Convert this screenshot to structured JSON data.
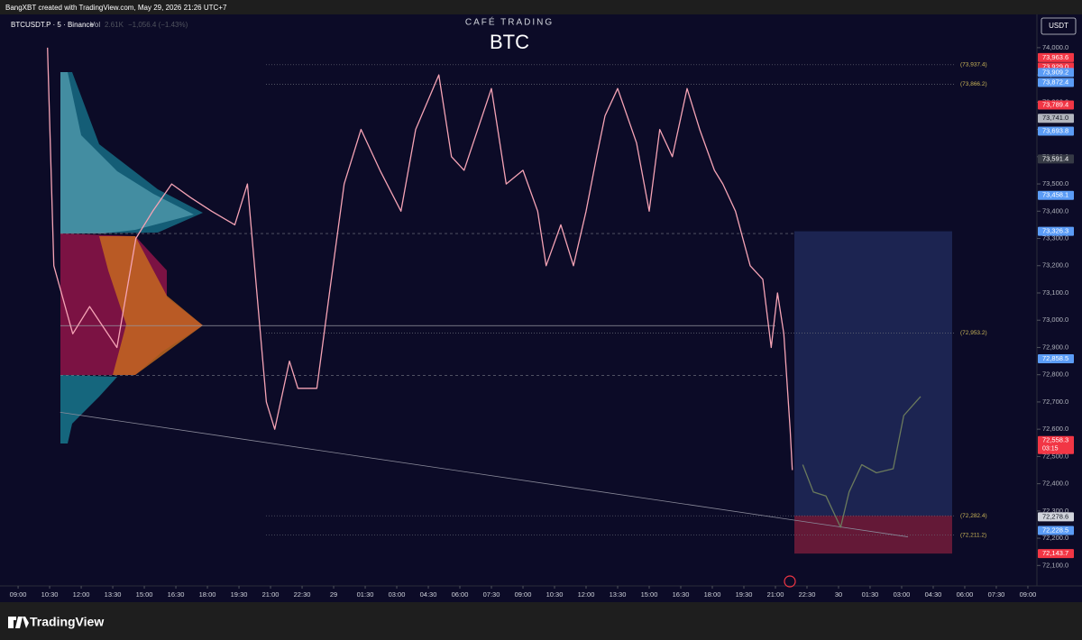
{
  "header": {
    "credit": "BangXBT created with TradingView.com, May 29, 2026 21:26 UTC+7",
    "symbol": "BTCUSDT.P · 5 · Binance",
    "vol_label": "Vol",
    "vol_value": "2.61K",
    "change": "−1,056.4 (−1.43%)",
    "brand": "CAFÉ TRADING",
    "currency": "USDT"
  },
  "footer": {
    "logo_text": "TradingView"
  },
  "chart_data": {
    "type": "line",
    "title": "BTC",
    "xlim": [
      -0.86,
      48.43
    ],
    "ylim": [
      72025,
      74122
    ],
    "xticks": [
      {
        "value": 0,
        "label": "09:00"
      },
      {
        "value": 1.5,
        "label": "10:30"
      },
      {
        "value": 3,
        "label": "12:00"
      },
      {
        "value": 4.5,
        "label": "13:30"
      },
      {
        "value": 6,
        "label": "15:00"
      },
      {
        "value": 7.5,
        "label": "16:30"
      },
      {
        "value": 9,
        "label": "18:00"
      },
      {
        "value": 10.5,
        "label": "19:30"
      },
      {
        "value": 12,
        "label": "21:00"
      },
      {
        "value": 13.5,
        "label": "22:30"
      },
      {
        "value": 15,
        "label": "29"
      },
      {
        "value": 16.5,
        "label": "01:30"
      },
      {
        "value": 18,
        "label": "03:00"
      },
      {
        "value": 19.5,
        "label": "04:30"
      },
      {
        "value": 21,
        "label": "06:00"
      },
      {
        "value": 22.5,
        "label": "07:30"
      },
      {
        "value": 24,
        "label": "09:00"
      },
      {
        "value": 25.5,
        "label": "10:30"
      },
      {
        "value": 27,
        "label": "12:00"
      },
      {
        "value": 28.5,
        "label": "13:30"
      },
      {
        "value": 30,
        "label": "15:00"
      },
      {
        "value": 31.5,
        "label": "16:30"
      },
      {
        "value": 33,
        "label": "18:00"
      },
      {
        "value": 34.5,
        "label": "19:30"
      },
      {
        "value": 36,
        "label": "21:00"
      },
      {
        "value": 37.5,
        "label": "22:30"
      },
      {
        "value": 39,
        "label": "30"
      },
      {
        "value": 40.5,
        "label": "01:30"
      },
      {
        "value": 42,
        "label": "03:00"
      },
      {
        "value": 43.5,
        "label": "04:30"
      },
      {
        "value": 45,
        "label": "06:00"
      },
      {
        "value": 46.5,
        "label": "07:30"
      },
      {
        "value": 48,
        "label": "09:00"
      }
    ],
    "yticks": [
      {
        "value": 72100,
        "label": "72,100.0"
      },
      {
        "value": 72200,
        "label": "72,200.0"
      },
      {
        "value": 72300,
        "label": "72,300.0"
      },
      {
        "value": 72400,
        "label": "72,400.0"
      },
      {
        "value": 72500,
        "label": "72,500.0"
      },
      {
        "value": 72600,
        "label": "72,600.0"
      },
      {
        "value": 72700,
        "label": "72,700.0"
      },
      {
        "value": 72800,
        "label": "72,800.0"
      },
      {
        "value": 72900,
        "label": "72,900.0"
      },
      {
        "value": 73000,
        "label": "73,000.0"
      },
      {
        "value": 73100,
        "label": "73,100.0"
      },
      {
        "value": 73200,
        "label": "73,200.0"
      },
      {
        "value": 73300,
        "label": "73,300.0"
      },
      {
        "value": 73400,
        "label": "73,400.0"
      },
      {
        "value": 73500,
        "label": "73,500.0"
      },
      {
        "value": 73600,
        "label": "73,600.0"
      },
      {
        "value": 73700,
        "label": "73,700.0"
      },
      {
        "value": 73800,
        "label": "73,800.0"
      },
      {
        "value": 73900,
        "label": "73,900.0"
      },
      {
        "value": 74000,
        "label": "74,000.0"
      }
    ],
    "series": [
      {
        "color": "#f5a3b5",
        "x": [
          1.4,
          1.7,
          2.6,
          3.4,
          4.7,
          5.6,
          6.4,
          7.3,
          8.2,
          9.2,
          10.3,
          10.9,
          11.8,
          12.2,
          12.9,
          13.3,
          14.2,
          14.8,
          15.5,
          16.3,
          17.2,
          18.2,
          18.9,
          20.0,
          20.6,
          21.2,
          22.5,
          23.2,
          24.0,
          24.7,
          25.1,
          25.8,
          26.4,
          27.0,
          27.5,
          27.9,
          28.5,
          29.4,
          30.0,
          30.5,
          31.1,
          31.8,
          32.4,
          33.1,
          33.5,
          34.1,
          34.8,
          35.4,
          35.8,
          36.1,
          36.4,
          36.7,
          36.8
        ],
        "values": [
          74000,
          73200,
          72950,
          73050,
          72900,
          73300,
          73400,
          73500,
          73450,
          73400,
          73350,
          73500,
          72700,
          72600,
          72850,
          72750,
          72750,
          73100,
          73500,
          73700,
          73550,
          73400,
          73700,
          73900,
          73600,
          73550,
          73850,
          73500,
          73550,
          73400,
          73200,
          73350,
          73200,
          73400,
          73600,
          73750,
          73850,
          73650,
          73400,
          73700,
          73600,
          73850,
          73700,
          73550,
          73500,
          73400,
          73200,
          73150,
          72900,
          73100,
          72950,
          72600,
          72450
        ]
      },
      {
        "color": "#6b7a5d",
        "x": [
          37.3,
          37.8,
          38.4,
          39.1,
          39.5,
          40.1,
          40.8,
          41.6,
          42.1,
          42.9
        ],
        "values": [
          72470,
          72370,
          72355,
          72240,
          72370,
          72470,
          72440,
          72455,
          72650,
          72720
        ]
      }
    ],
    "trend_line": {
      "color": "#8a8a9a",
      "x": [
        2.0,
        42.3
      ],
      "values": [
        72662,
        72205
      ]
    },
    "volume_profile": {
      "vah": 73318,
      "poc": 72980,
      "val": 72798
    },
    "position": {
      "x": [
        36.9,
        44.4
      ],
      "target": 73326.3,
      "entry": 72282.4,
      "stop": 72143.7
    },
    "levels": [
      {
        "value": 73937.4,
        "label": "(73,937.4)"
      },
      {
        "value": 73866.2,
        "label": "(73,866.2)"
      },
      {
        "value": 72953.2,
        "label": "(72,953.2)"
      },
      {
        "value": 72282.4,
        "label": "(72,282.4)"
      },
      {
        "value": 72211.2,
        "label": "(72,211.2)"
      }
    ],
    "price_tags": [
      {
        "value": 73963.6,
        "label": "73,963.6",
        "color": "#f23645"
      },
      {
        "value": 73929.0,
        "label": "73,929.0",
        "color": "#f23645"
      },
      {
        "value": 73909.2,
        "label": "73,909.2",
        "color": "#5b9cf6"
      },
      {
        "value": 73872.4,
        "label": "73,872.4",
        "color": "#5b9cf6"
      },
      {
        "value": 73789.4,
        "label": "73,789.4",
        "color": "#f23645"
      },
      {
        "value": 73741.0,
        "label": "73,741.0",
        "color": "#b2b5be"
      },
      {
        "value": 73693.8,
        "label": "73,693.8",
        "color": "#5b9cf6"
      },
      {
        "value": 73591.4,
        "label": "73,591.4",
        "color": "#363a45"
      },
      {
        "value": 73458.1,
        "label": "73,458.1",
        "color": "#5b9cf6"
      },
      {
        "value": 73326.3,
        "label": "73,326.3",
        "color": "#5b9cf6"
      },
      {
        "value": 72858.5,
        "label": "72,858.5",
        "color": "#5b9cf6"
      },
      {
        "value": 72558.3,
        "label": "72,558.3",
        "color": "#f23645",
        "countdown": "03:15"
      },
      {
        "value": 72278.6,
        "label": "72,278.6",
        "color": "#d1d4dc"
      },
      {
        "value": 72228.5,
        "label": "72,228.5",
        "color": "#5b9cf6"
      },
      {
        "value": 72143.7,
        "label": "72,143.7",
        "color": "#f23645"
      }
    ]
  }
}
